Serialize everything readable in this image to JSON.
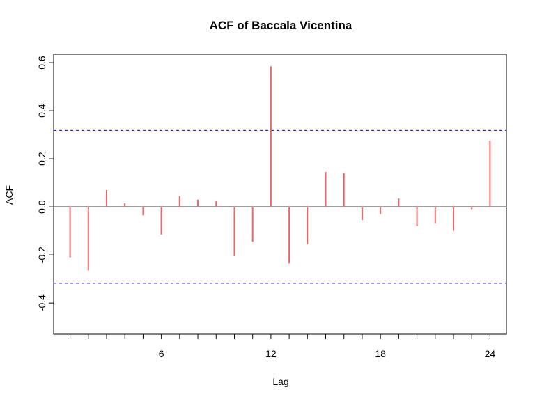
{
  "chart_data": {
    "type": "bar",
    "title": "ACF of Baccala Vicentina",
    "xlabel": "Lag",
    "ylabel": "ACF",
    "x": [
      1,
      2,
      3,
      4,
      5,
      6,
      7,
      8,
      9,
      10,
      11,
      12,
      13,
      14,
      15,
      16,
      17,
      18,
      19,
      20,
      21,
      22,
      23,
      24
    ],
    "values": [
      -0.21,
      -0.265,
      0.07,
      0.015,
      -0.035,
      -0.115,
      0.045,
      0.03,
      0.025,
      -0.205,
      -0.145,
      0.585,
      -0.235,
      -0.155,
      0.145,
      0.14,
      -0.055,
      -0.03,
      0.035,
      -0.08,
      -0.07,
      -0.1,
      -0.01,
      0.275
    ],
    "xlim": [
      0.1,
      24.9
    ],
    "ylim": [
      -0.53,
      0.635
    ],
    "x_ticks": [
      6,
      12,
      18,
      24
    ],
    "x_minor_ticks": [
      1,
      2,
      3,
      4,
      5,
      7,
      8,
      9,
      10,
      11,
      13,
      14,
      15,
      16,
      17,
      19,
      20,
      21,
      22,
      23
    ],
    "y_ticks": [
      -0.4,
      -0.2,
      0.0,
      0.2,
      0.4,
      0.6
    ],
    "y_tick_labels": [
      "-0.4",
      "-0.2",
      "0.0",
      "0.2",
      "0.4",
      "0.6"
    ],
    "confidence_bounds": [
      0.318,
      -0.318
    ],
    "grid": false,
    "bar_color": "#f06464",
    "bound_color": "#0000ee",
    "zero_line_color": "#000000"
  }
}
